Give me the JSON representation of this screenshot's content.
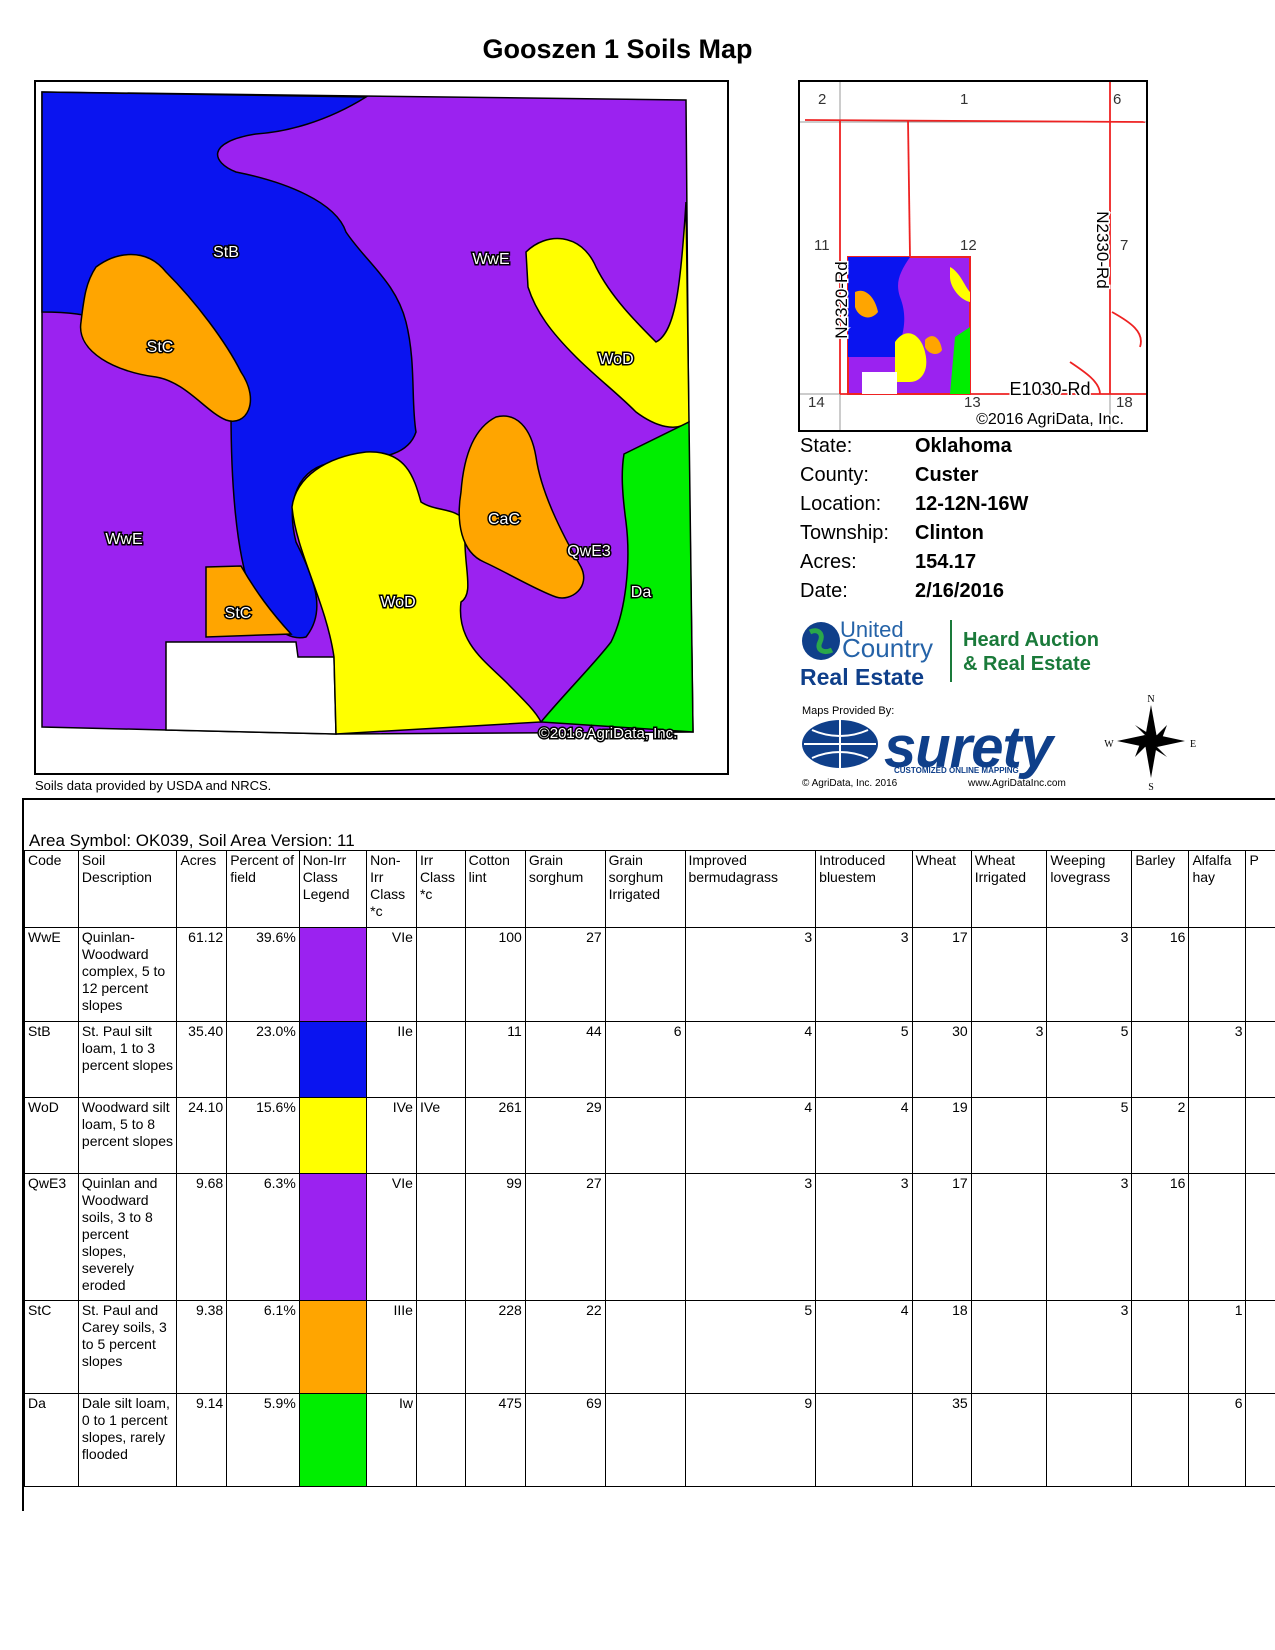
{
  "title": "Gooszen 1 Soils Map",
  "map": {
    "labels": [
      "StB",
      "WwE",
      "StC",
      "WoD",
      "CaC",
      "QwE3",
      "WwE",
      "Da",
      "StC",
      "WoD"
    ],
    "copyright": "©2016 AgriData, Inc.",
    "credit": "Soils data provided by USDA and NRCS."
  },
  "inset": {
    "sections": [
      "2",
      "1",
      "6",
      "11",
      "12",
      "7",
      "14",
      "13",
      "18"
    ],
    "roads": [
      "N2320-Rd",
      "N2330-Rd",
      "E1030-Rd"
    ],
    "copyright": "©2016 AgriData, Inc."
  },
  "info": [
    {
      "label": "State:",
      "value": "Oklahoma"
    },
    {
      "label": "County:",
      "value": "Custer"
    },
    {
      "label": "Location:",
      "value": "12-12N-16W"
    },
    {
      "label": "Township:",
      "value": "Clinton"
    },
    {
      "label": "Acres:",
      "value": "154.17"
    },
    {
      "label": "Date:",
      "value": "2/16/2016"
    }
  ],
  "logos": {
    "uc_united": "United",
    "uc_country": "Country",
    "uc_realestate": "Real Estate",
    "heard_line1": "Heard Auction",
    "heard_line2": "& Real Estate",
    "maps_provided": "Maps Provided By:",
    "surety": "surety",
    "surety_tag": "CUSTOMIZED ONLINE MAPPING",
    "agridata_copy": "© AgriData, Inc. 2016",
    "agridata_url": "www.AgriDataInc.com"
  },
  "compass": {
    "n": "N",
    "s": "S",
    "e": "E",
    "w": "W"
  },
  "table": {
    "area_line": "Area Symbol: OK039, Soil Area Version: 11",
    "headers": [
      "Code",
      "Soil Description",
      "Acres",
      "Percent of field",
      "Non-Irr Class Legend",
      "Non-Irr Class *c",
      "Irr Class *c",
      "Cotton lint",
      "Grain sorghum",
      "Grain sorghum Irrigated",
      "Improved bermudagrass",
      "Introduced bluestem",
      "Wheat",
      "Wheat Irrigated",
      "Weeping lovegrass",
      "Barley",
      "Alfalfa hay",
      "P"
    ],
    "rows": [
      {
        "code": "WwE",
        "desc": "Quinlan-Woodward complex, 5 to 12 percent slopes",
        "acres": "61.12",
        "pct": "39.6%",
        "color": "#9b22f0",
        "nonirr": "VIe",
        "irr": "",
        "cotton": "100",
        "gs": "27",
        "gsi": "",
        "ib": "3",
        "intb": "3",
        "wheat": "17",
        "wi": "",
        "wl": "3",
        "barley": "16",
        "alfalfa": ""
      },
      {
        "code": "StB",
        "desc": "St. Paul silt loam, 1 to 3 percent slopes",
        "acres": "35.40",
        "pct": "23.0%",
        "color": "#0a14f0",
        "nonirr": "IIe",
        "irr": "",
        "cotton": "11",
        "gs": "44",
        "gsi": "6",
        "ib": "4",
        "intb": "5",
        "wheat": "30",
        "wi": "3",
        "wl": "5",
        "barley": "",
        "alfalfa": "3"
      },
      {
        "code": "WoD",
        "desc": "Woodward silt loam, 5 to 8 percent slopes",
        "acres": "24.10",
        "pct": "15.6%",
        "color": "#ffff00",
        "nonirr": "IVe",
        "irr": "IVe",
        "cotton": "261",
        "gs": "29",
        "gsi": "",
        "ib": "4",
        "intb": "4",
        "wheat": "19",
        "wi": "",
        "wl": "5",
        "barley": "2",
        "alfalfa": ""
      },
      {
        "code": "QwE3",
        "desc": "Quinlan and Woodward soils, 3 to 8 percent slopes, severely eroded",
        "acres": "9.68",
        "pct": "6.3%",
        "color": "#9b22f0",
        "nonirr": "VIe",
        "irr": "",
        "cotton": "99",
        "gs": "27",
        "gsi": "",
        "ib": "3",
        "intb": "3",
        "wheat": "17",
        "wi": "",
        "wl": "3",
        "barley": "16",
        "alfalfa": ""
      },
      {
        "code": "StC",
        "desc": "St. Paul and Carey soils, 3 to 5 percent slopes",
        "acres": "9.38",
        "pct": "6.1%",
        "color": "#ffa500",
        "nonirr": "IIIe",
        "irr": "",
        "cotton": "228",
        "gs": "22",
        "gsi": "",
        "ib": "5",
        "intb": "4",
        "wheat": "18",
        "wi": "",
        "wl": "3",
        "barley": "",
        "alfalfa": "1"
      },
      {
        "code": "Da",
        "desc": "Dale silt loam, 0 to 1 percent slopes, rarely flooded",
        "acres": "9.14",
        "pct": "5.9%",
        "color": "#00ee00",
        "nonirr": "Iw",
        "irr": "",
        "cotton": "475",
        "gs": "69",
        "gsi": "",
        "ib": "9",
        "intb": "",
        "wheat": "35",
        "wi": "",
        "wl": "",
        "barley": "",
        "alfalfa": "6"
      }
    ]
  }
}
